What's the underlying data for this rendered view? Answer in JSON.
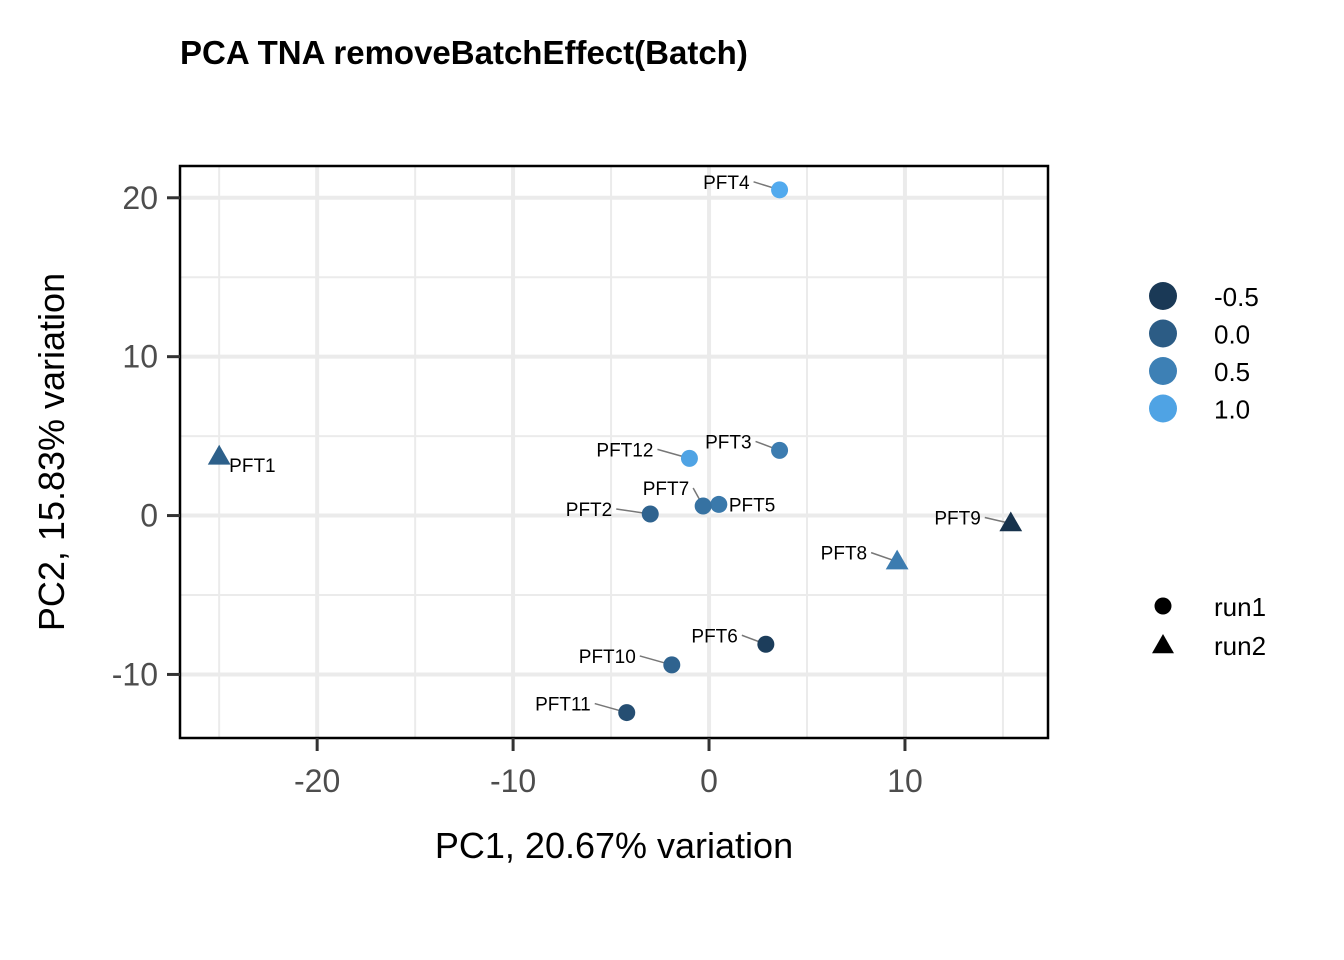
{
  "chart_data": {
    "type": "scatter",
    "title": "PCA TNA removeBatchEffect(Batch)",
    "xlabel": "PC1, 20.67% variation",
    "ylabel": "PC2, 15.83% variation",
    "xlim": [
      -27,
      17.3
    ],
    "ylim": [
      -14,
      22
    ],
    "xticks": [
      -20,
      -10,
      0,
      10
    ],
    "yticks": [
      -10,
      0,
      10,
      20
    ],
    "xtick_labels": [
      "-20",
      "-10",
      "0",
      "10"
    ],
    "ytick_labels": [
      "-10",
      "0",
      "10",
      "20"
    ],
    "grid": true,
    "color_legend": {
      "entries": [
        {
          "label": "-0.5",
          "value": -0.5
        },
        {
          "label": "0.0",
          "value": 0.0
        },
        {
          "label": "0.5",
          "value": 0.5
        },
        {
          "label": "1.0",
          "value": 1.0
        }
      ],
      "color_low": "#132b43",
      "color_high": "#56b1f7",
      "range": [
        -0.7,
        1.2
      ]
    },
    "shape_legend": {
      "entries": [
        {
          "label": "run1",
          "shape": "circle"
        },
        {
          "label": "run2",
          "shape": "triangle"
        }
      ]
    },
    "legend_position": "right",
    "points": [
      {
        "label": "PFT1",
        "x": -25.0,
        "y": 3.7,
        "color": 0.05,
        "shape": "triangle"
      },
      {
        "label": "PFT2",
        "x": -3.0,
        "y": 0.1,
        "color": 0.1,
        "shape": "circle"
      },
      {
        "label": "PFT3",
        "x": 3.6,
        "y": 4.1,
        "color": 0.45,
        "shape": "circle"
      },
      {
        "label": "PFT4",
        "x": 3.6,
        "y": 20.5,
        "color": 1.1,
        "shape": "circle"
      },
      {
        "label": "PFT5",
        "x": 0.5,
        "y": 0.7,
        "color": 0.4,
        "shape": "circle"
      },
      {
        "label": "PFT6",
        "x": 2.9,
        "y": -8.1,
        "color": -0.45,
        "shape": "circle"
      },
      {
        "label": "PFT7",
        "x": -0.3,
        "y": 0.6,
        "color": 0.3,
        "shape": "circle"
      },
      {
        "label": "PFT8",
        "x": 9.6,
        "y": -2.9,
        "color": 0.45,
        "shape": "triangle"
      },
      {
        "label": "PFT9",
        "x": 15.4,
        "y": -0.5,
        "color": -0.6,
        "shape": "triangle"
      },
      {
        "label": "PFT10",
        "x": -1.9,
        "y": -9.4,
        "color": 0.1,
        "shape": "circle"
      },
      {
        "label": "PFT11",
        "x": -4.2,
        "y": -12.4,
        "color": -0.2,
        "shape": "circle"
      },
      {
        "label": "PFT12",
        "x": -1.0,
        "y": 3.6,
        "color": 1.0,
        "shape": "circle"
      }
    ]
  }
}
